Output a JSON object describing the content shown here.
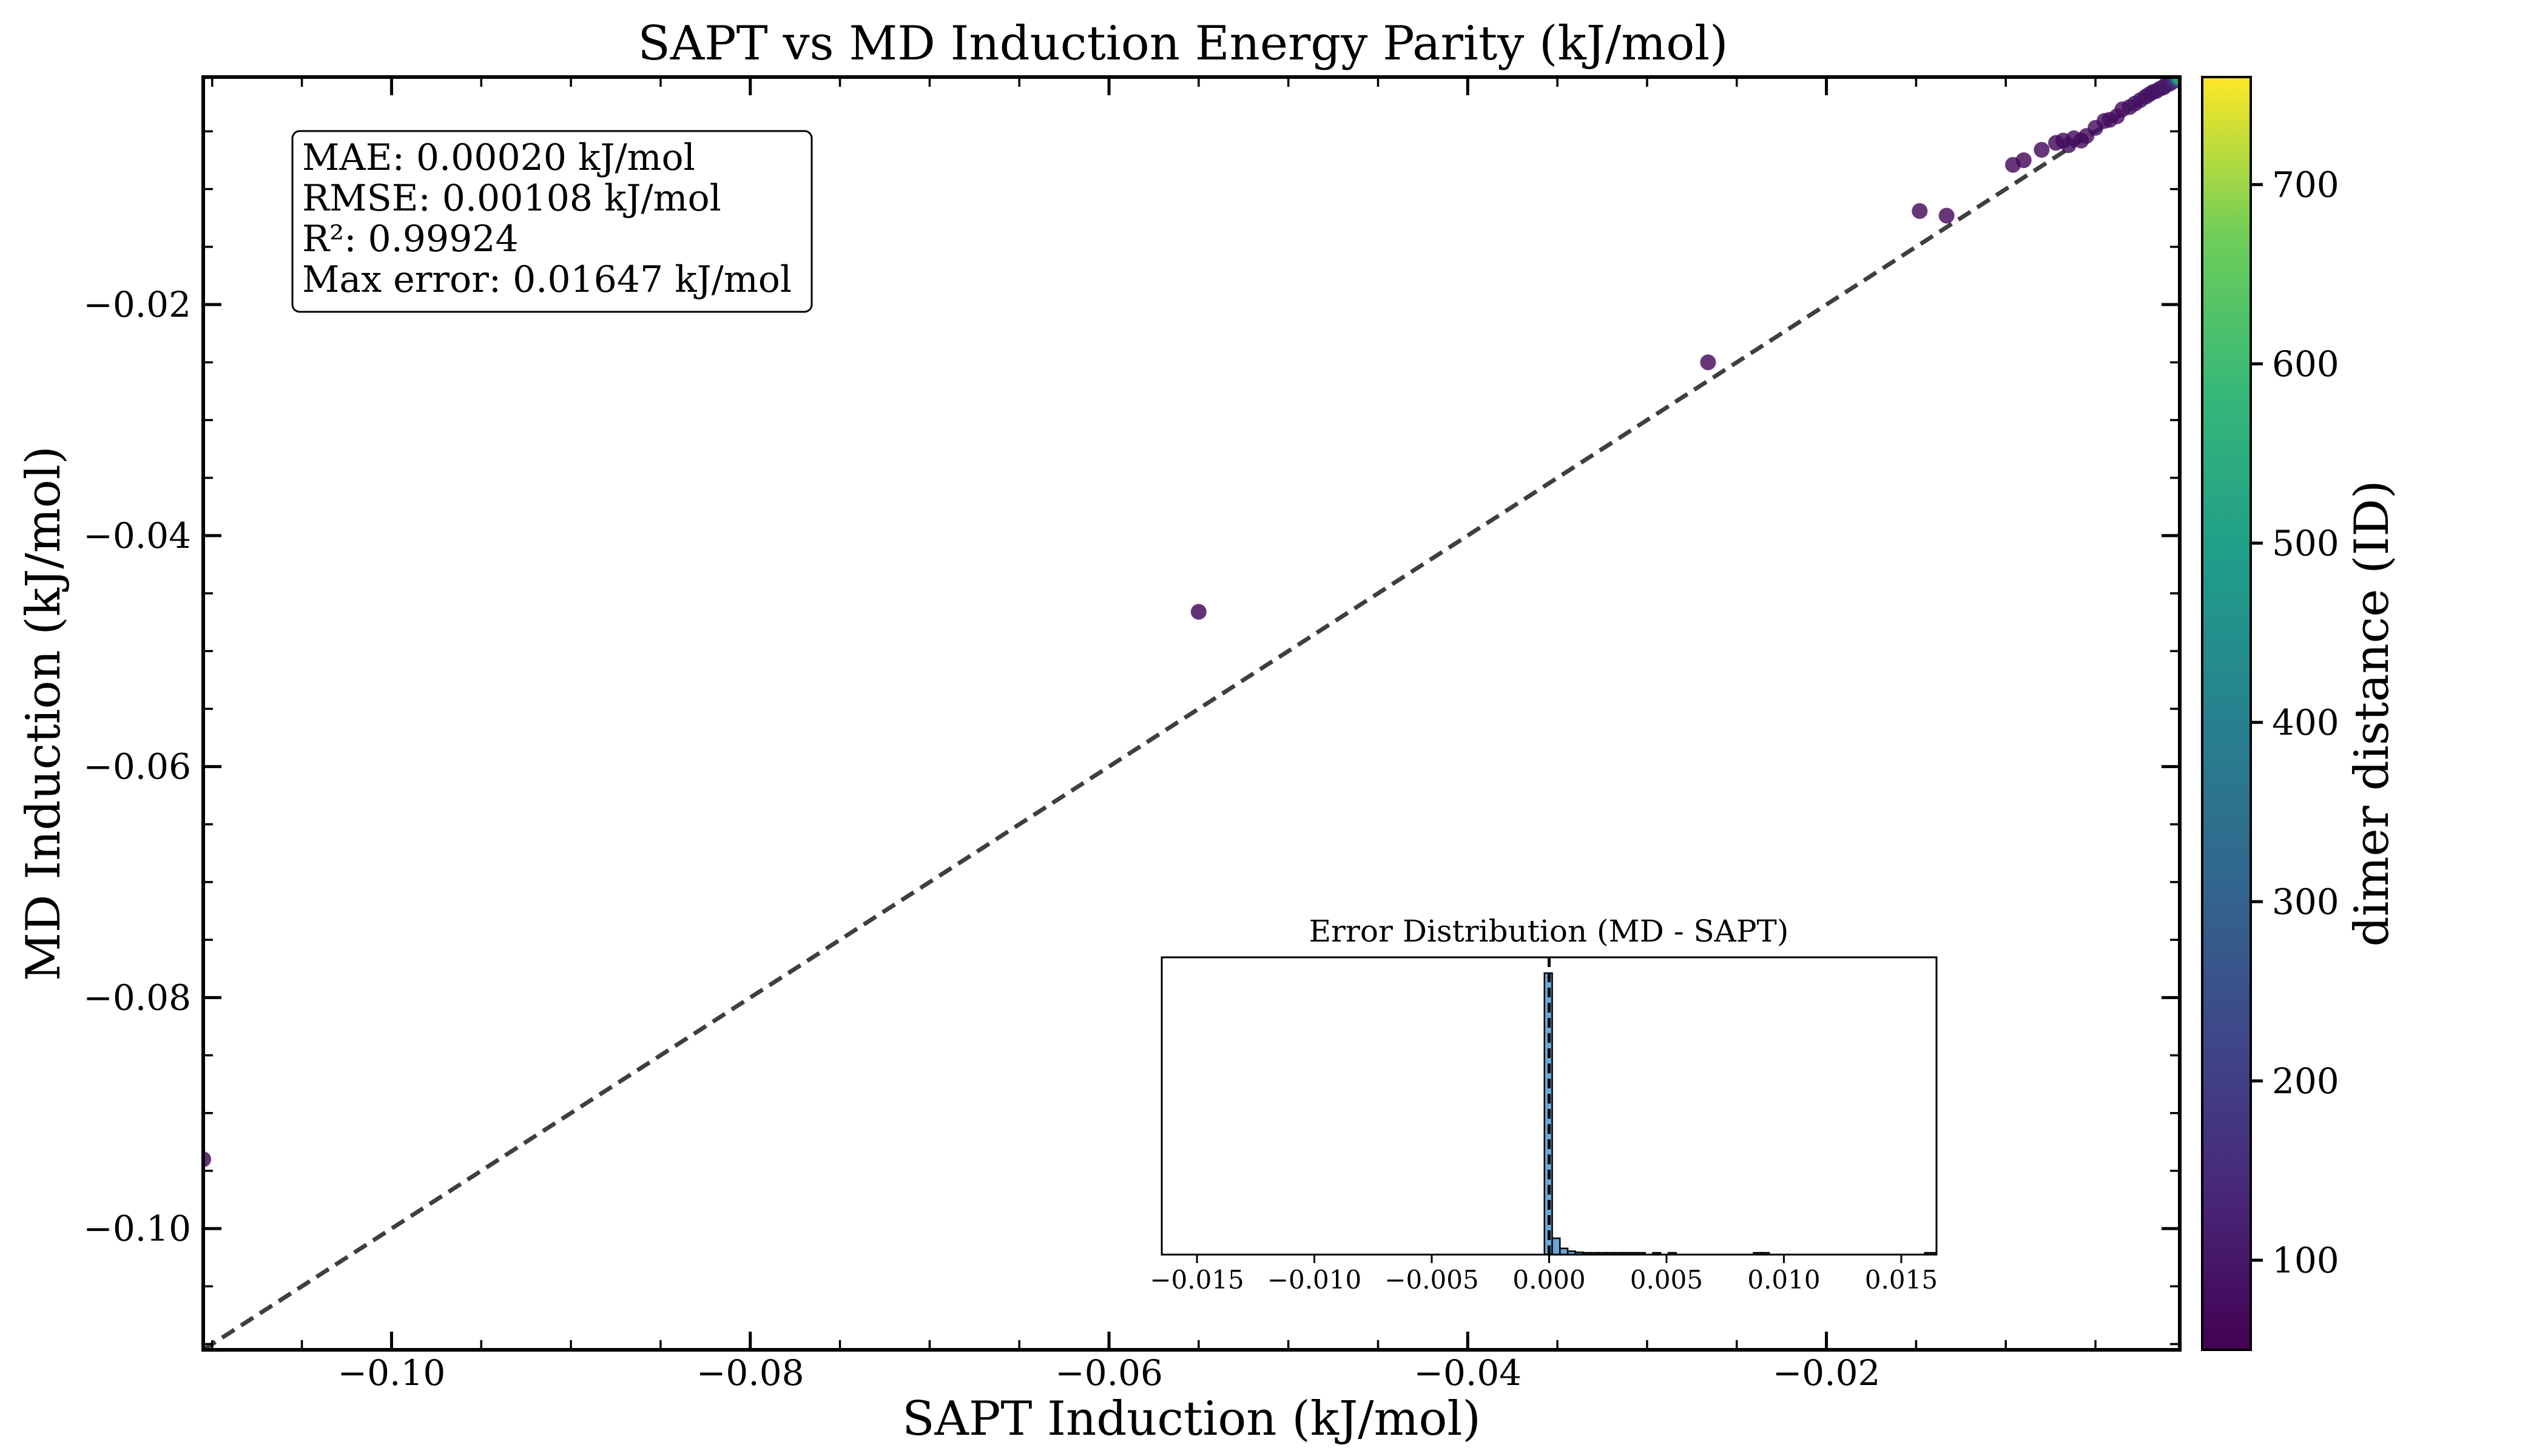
{
  "chart_data": [
    {
      "type": "scatter",
      "title": "SAPT vs MD Induction Energy Parity (kJ/mol)",
      "xlabel": "SAPT Induction (kJ/mol)",
      "ylabel": "MD Induction (kJ/mol)",
      "xlim": [
        -0.1105,
        -0.0003
      ],
      "ylim": [
        -0.1105,
        -0.0003
      ],
      "xticks": [
        -0.1,
        -0.08,
        -0.06,
        -0.04,
        -0.02
      ],
      "xtick_labels": [
        "−0.10",
        "−0.08",
        "−0.06",
        "−0.04",
        "−0.02"
      ],
      "yticks": [
        -0.1,
        -0.08,
        -0.06,
        -0.04,
        -0.02
      ],
      "ytick_labels": [
        "−0.10",
        "−0.08",
        "−0.06",
        "−0.04",
        "−0.02"
      ],
      "grid": false,
      "reference_line": {
        "style": "dashed",
        "color": "#3f3f3f",
        "from": [
          -0.1105,
          -0.1105
        ],
        "to": [
          -0.0003,
          -0.0003
        ]
      },
      "colorbar": {
        "label": "dimer distance (ID)",
        "range": [
          50,
          760
        ],
        "ticks": [
          100,
          200,
          300,
          400,
          500,
          600,
          700
        ],
        "tick_labels": [
          "100",
          "200",
          "300",
          "400",
          "500",
          "600",
          "700"
        ],
        "colormap": "viridis"
      },
      "stats_box": [
        "MAE: 0.00020 kJ/mol",
        "RMSE: 0.00108 kJ/mol",
        "R²: 0.99924",
        "Max error: 0.01647 kJ/mol"
      ],
      "points": [
        {
          "x": -0.1105,
          "y": -0.094,
          "c": 60
        },
        {
          "x": -0.055,
          "y": -0.0466,
          "c": 60
        },
        {
          "x": -0.0266,
          "y": -0.025,
          "c": 65
        },
        {
          "x": -0.0148,
          "y": -0.0119,
          "c": 65
        },
        {
          "x": -0.0133,
          "y": -0.0123,
          "c": 65
        },
        {
          "x": -0.0096,
          "y": -0.0079,
          "c": 70
        },
        {
          "x": -0.009,
          "y": -0.0075,
          "c": 70
        },
        {
          "x": -0.008,
          "y": -0.0066,
          "c": 70
        },
        {
          "x": -0.0072,
          "y": -0.006,
          "c": 70
        },
        {
          "x": -0.0068,
          "y": -0.0058,
          "c": 75
        },
        {
          "x": -0.0065,
          "y": -0.0062,
          "c": 75
        },
        {
          "x": -0.0062,
          "y": -0.0056,
          "c": 75
        },
        {
          "x": -0.0058,
          "y": -0.0058,
          "c": 75
        },
        {
          "x": -0.0055,
          "y": -0.0054,
          "c": 75
        },
        {
          "x": -0.005,
          "y": -0.0047,
          "c": 80
        },
        {
          "x": -0.0045,
          "y": -0.0041,
          "c": 80
        },
        {
          "x": -0.0042,
          "y": -0.004,
          "c": 80
        },
        {
          "x": -0.0038,
          "y": -0.0037,
          "c": 80
        },
        {
          "x": -0.0035,
          "y": -0.0031,
          "c": 80
        },
        {
          "x": -0.0031,
          "y": -0.0029,
          "c": 85
        },
        {
          "x": -0.0028,
          "y": -0.0026,
          "c": 85
        },
        {
          "x": -0.0025,
          "y": -0.0023,
          "c": 85
        },
        {
          "x": -0.0022,
          "y": -0.002,
          "c": 85
        },
        {
          "x": -0.002,
          "y": -0.0018,
          "c": 90
        },
        {
          "x": -0.0018,
          "y": -0.0016,
          "c": 90
        },
        {
          "x": -0.0016,
          "y": -0.0015,
          "c": 90
        },
        {
          "x": -0.0014,
          "y": -0.0013,
          "c": 95
        },
        {
          "x": -0.0012,
          "y": -0.0012,
          "c": 95
        },
        {
          "x": -0.0011,
          "y": -0.001,
          "c": 100
        },
        {
          "x": -0.0009,
          "y": -0.0009,
          "c": 100
        },
        {
          "x": -0.0008,
          "y": -0.0008,
          "c": 110
        },
        {
          "x": -0.0007,
          "y": -0.0007,
          "c": 120
        },
        {
          "x": -0.0006,
          "y": -0.0006,
          "c": 140
        },
        {
          "x": -0.0005,
          "y": -0.0005,
          "c": 200
        },
        {
          "x": -0.0004,
          "y": -0.0004,
          "c": 350
        },
        {
          "x": -0.0003,
          "y": -0.0003,
          "c": 550
        }
      ]
    },
    {
      "type": "bar",
      "title": "Error Distribution (MD - SAPT)",
      "xlim": [
        -0.0165,
        0.0165
      ],
      "xticks": [
        -0.015,
        -0.01,
        -0.005,
        0.0,
        0.005,
        0.01,
        0.015
      ],
      "xtick_labels": [
        "−0.015",
        "−0.010",
        "−0.005",
        "0.000",
        "0.005",
        "0.010",
        "0.015"
      ],
      "bar_color": "#5a9fd0",
      "zero_line": {
        "style": "dashed",
        "color": "#000000"
      },
      "bins": [
        {
          "x0": -0.0002,
          "x1": 0.00013,
          "count": 1000
        },
        {
          "x0": 0.00013,
          "x1": 0.00046,
          "count": 58
        },
        {
          "x0": 0.00046,
          "x1": 0.00079,
          "count": 22
        },
        {
          "x0": 0.00079,
          "x1": 0.00112,
          "count": 12
        },
        {
          "x0": 0.00112,
          "x1": 0.00145,
          "count": 8
        },
        {
          "x0": 0.00145,
          "x1": 0.00178,
          "count": 6
        },
        {
          "x0": 0.00178,
          "x1": 0.00211,
          "count": 4
        },
        {
          "x0": 0.00211,
          "x1": 0.00244,
          "count": 3
        },
        {
          "x0": 0.00244,
          "x1": 0.00277,
          "count": 3
        },
        {
          "x0": 0.00277,
          "x1": 0.0031,
          "count": 2
        },
        {
          "x0": 0.0031,
          "x1": 0.00343,
          "count": 2
        },
        {
          "x0": 0.00343,
          "x1": 0.00376,
          "count": 1
        },
        {
          "x0": 0.00376,
          "x1": 0.00409,
          "count": 1
        },
        {
          "x0": 0.00442,
          "x1": 0.00475,
          "count": 1
        },
        {
          "x0": 0.00508,
          "x1": 0.00541,
          "count": 1
        },
        {
          "x0": 0.00871,
          "x1": 0.00904,
          "count": 2
        },
        {
          "x0": 0.00904,
          "x1": 0.00937,
          "count": 1
        },
        {
          "x0": 0.016,
          "x1": 0.01647,
          "count": 1
        }
      ]
    }
  ]
}
